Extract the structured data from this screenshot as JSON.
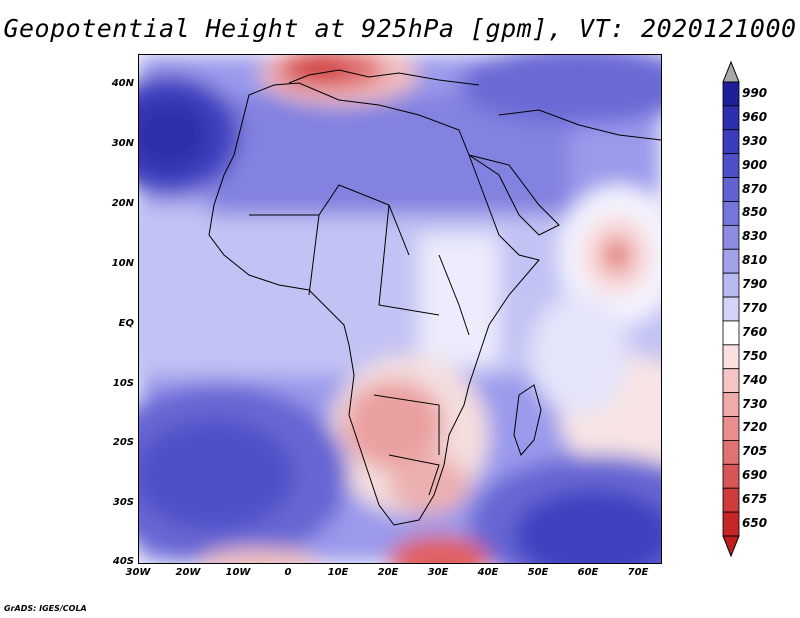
{
  "title": "Geopotential Height at 925hPa [gpm], VT: 2020121000",
  "credit": "GrADS: IGES/COLA",
  "lat_labels": [
    "40N",
    "30N",
    "20N",
    "10N",
    "EQ",
    "10S",
    "20S",
    "30S",
    "40S"
  ],
  "lon_labels": [
    "30W",
    "20W",
    "10W",
    "0",
    "10E",
    "20E",
    "30E",
    "40E",
    "50E",
    "60E",
    "70E"
  ],
  "colorbar": {
    "levels": [
      "990",
      "960",
      "930",
      "900",
      "870",
      "850",
      "830",
      "810",
      "790",
      "770",
      "760",
      "750",
      "740",
      "730",
      "720",
      "705",
      "690",
      "675",
      "650"
    ],
    "colors": [
      "#1f1f99",
      "#2e2eb0",
      "#3c3cc0",
      "#4f4fca",
      "#6262d2",
      "#7676da",
      "#8b8be2",
      "#a2a2ea",
      "#babaf2",
      "#d3d3f8",
      "#ffffff",
      "#fbe0e0",
      "#f6c6c6",
      "#efaaaa",
      "#e88e8e",
      "#e07272",
      "#d85656",
      "#cf3c3c",
      "#c62626"
    ],
    "over_color": "#a8a8a8",
    "under_color": "#bb1f1f"
  }
}
